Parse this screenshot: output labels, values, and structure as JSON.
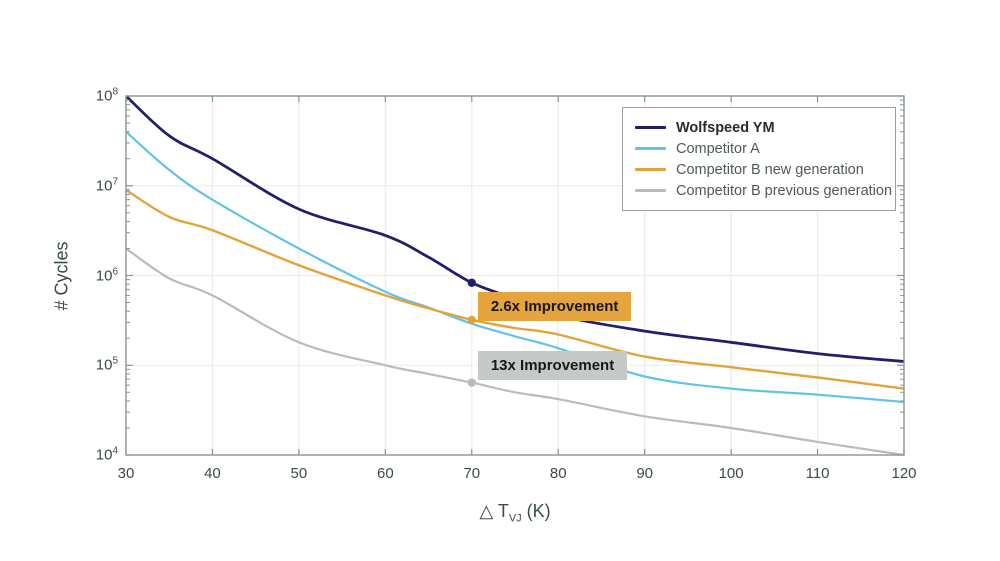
{
  "chart_data": {
    "type": "line",
    "title": "",
    "ylabel": "# Cycles",
    "xlabel_parts": {
      "prefix": "△ T",
      "sub": "VJ",
      "suffix": " (K)"
    },
    "xlim": [
      30,
      120
    ],
    "ylim_exponents": [
      4,
      8
    ],
    "xticks": [
      30,
      40,
      50,
      60,
      70,
      80,
      90,
      100,
      110,
      120
    ],
    "ytick_base": "10",
    "ytick_exponents": [
      4,
      5,
      6,
      7,
      8
    ],
    "grid": {
      "vertical": true,
      "horizontal": true
    },
    "legend_position": "top-right",
    "x": [
      30,
      35,
      40,
      50,
      60,
      65,
      70,
      75,
      80,
      90,
      100,
      110,
      120
    ],
    "series": [
      {
        "name": "Wolfspeed YM",
        "color": "#211e6e",
        "line_width": 2.8,
        "bold_legend": true,
        "values": [
          100000000.0,
          36000000.0,
          20000000.0,
          5500000.0,
          2800000.0,
          1600000.0,
          830000.0,
          550000.0,
          360000.0,
          240000.0,
          180000.0,
          135000.0,
          110000.0
        ]
      },
      {
        "name": "Competitor A",
        "color": "#62c3e8",
        "line_width": 2.2,
        "bold_legend": false,
        "values": [
          40000000.0,
          15000000.0,
          7000000.0,
          2000000.0,
          660000.0,
          440000.0,
          290000.0,
          210000.0,
          155000.0,
          75000.0,
          55000.0,
          47000.0,
          39000.0
        ]
      },
      {
        "name": "Competitor B new generation",
        "color": "#e4a23a",
        "line_width": 2.4,
        "bold_legend": false,
        "values": [
          9000000.0,
          4500000.0,
          3200000.0,
          1300000.0,
          600000.0,
          430000.0,
          320000.0,
          260000.0,
          220000.0,
          125000.0,
          95000.0,
          73000.0,
          55000.0
        ]
      },
      {
        "name": "Competitor B previous generation",
        "color": "#b8bdbb",
        "line_width": 2.2,
        "bold_legend": false,
        "values": [
          2000000.0,
          930000.0,
          600000.0,
          180000.0,
          100000.0,
          80000.0,
          64000.0,
          50000.0,
          42000.0,
          27000.0,
          20000.0,
          14000.0,
          10000.0
        ]
      }
    ],
    "markers": [
      {
        "series": "Wolfspeed YM",
        "x": 70,
        "y": 830000.0,
        "color": "#211e6e"
      },
      {
        "series": "Competitor B new generation",
        "x": 70,
        "y": 320000.0,
        "color": "#e4a23a"
      },
      {
        "series": "Competitor B previous generation",
        "x": 70,
        "y": 64000.0,
        "color": "#b8bdbb"
      }
    ],
    "annotations": [
      {
        "text": "2.6x Improvement",
        "x": 70.7,
        "y_top": 660000.0,
        "bg": "#e5a43e",
        "fg": "#17171f"
      },
      {
        "text": "13x Improvement",
        "x": 70.7,
        "y_top": 145000.0,
        "bg": "#c5cac8",
        "fg": "#17171f"
      }
    ],
    "axis_colors": {
      "spine": "#87978f",
      "grid": "#eaeceb",
      "tick_text": "#3d4c44"
    }
  }
}
